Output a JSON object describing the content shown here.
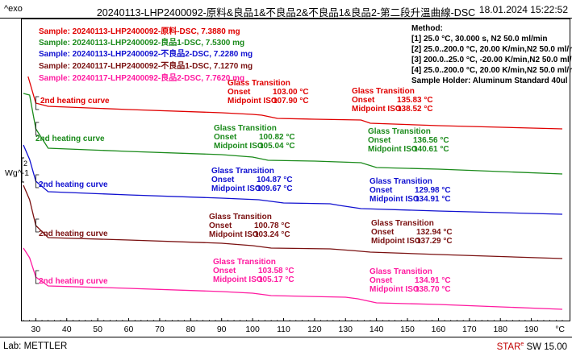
{
  "header": {
    "exo": "^exo",
    "title": "20240113-LHP2400092-原料&良品1&不良品2&不良品1&良品2-第二段升溫曲線-DSC",
    "date": "18.01.2024 15:22:52"
  },
  "ylabel": "Wg^-1",
  "scale_bar_label": "2",
  "footer": {
    "lab": "Lab: METTLER",
    "star_main": "STAR",
    "star_sup": "e",
    "star_rest": " SW 15.00"
  },
  "method": {
    "title": "Method:",
    "lines": [
      "[1] 25.0 °C, 30.000 s,  N2 50.0 ml/min",
      "[2] 25.0..200.0 °C, 20.00 K/min,N2 50.0 ml/min",
      "[3] 200.0..25.0 °C, -20.00 K/min,N2 50.0 ml/min",
      "[4] 25.0..200.0 °C, 20.00 K/min,N2 50.0 ml/min",
      "Sample Holder: Aluminum Standard 40ul"
    ]
  },
  "samples": [
    {
      "prefix": "Sample: 20240113-LHP2400092-",
      "name": "原料",
      "suffix": "-DSC, 7.3880 mg",
      "color": "#e00000"
    },
    {
      "prefix": "Sample: 20240113-LHP2400092-",
      "name": "良品1",
      "suffix": "-DSC, 7.5300 mg",
      "color": "#1a8a1a"
    },
    {
      "prefix": "Sample: 20240113-LHP2400092-",
      "name": "不良品2",
      "suffix": "-DSC, 7.2280 mg",
      "color": "#1010d0"
    },
    {
      "prefix": "Sample: 20240117-LHP2400092-",
      "name": "不良品1",
      "suffix": "-DSC, 7.1270 mg",
      "color": "#7a1010"
    },
    {
      "prefix": "Sample: 20240117-LHP2400092-",
      "name": "良品2",
      "suffix": "-DSC, 7.7620 mg",
      "color": "#ff1aa0"
    }
  ],
  "chart_data": {
    "type": "line",
    "xlabel": "°C",
    "xlim": [
      26,
      200
    ],
    "xticks": [
      30,
      40,
      50,
      60,
      70,
      80,
      90,
      100,
      110,
      120,
      130,
      140,
      150,
      160,
      170,
      180,
      190
    ],
    "curve_label": "2nd heating curve",
    "series": [
      {
        "color": "#e00000",
        "points": [
          [
            27.5,
            95
          ],
          [
            30,
            128
          ],
          [
            34,
            132
          ],
          [
            60,
            136
          ],
          [
            90,
            140
          ],
          [
            100,
            142
          ],
          [
            103,
            143
          ],
          [
            108,
            147
          ],
          [
            120,
            148
          ],
          [
            135,
            149
          ],
          [
            138,
            153
          ],
          [
            160,
            156
          ],
          [
            200,
            160
          ]
        ],
        "transitions": [
          {
            "title": "Glass Transition",
            "onset_label": "Onset",
            "onset": "103.00 °C",
            "mid_label": "Midpoint ISO",
            "mid": "107.90 °C"
          },
          {
            "title": "Glass Transition",
            "onset_label": "Onset",
            "onset": "135.83 °C",
            "mid_label": "Midpoint ISO",
            "mid": "138.52 °C"
          }
        ]
      },
      {
        "color": "#1a8a1a",
        "points": [
          [
            26,
            116
          ],
          [
            28,
            118
          ],
          [
            30,
            160
          ],
          [
            34,
            184
          ],
          [
            60,
            188
          ],
          [
            90,
            192
          ],
          [
            100,
            195
          ],
          [
            105,
            199
          ],
          [
            120,
            200
          ],
          [
            135,
            202
          ],
          [
            140,
            208
          ],
          [
            160,
            210
          ],
          [
            200,
            216
          ]
        ],
        "transitions": [
          {
            "title": "Glass Transition",
            "onset_label": "Onset",
            "onset": "100.82 °C",
            "mid_label": "Midpoint ISO",
            "mid": "105.04 °C"
          },
          {
            "title": "Glass Transition",
            "onset_label": "Onset",
            "onset": "136.56 °C",
            "mid_label": "Midpoint ISO",
            "mid": "140.61 °C"
          }
        ]
      },
      {
        "color": "#1010d0",
        "points": [
          [
            26,
            180
          ],
          [
            28,
            198
          ],
          [
            30,
            225
          ],
          [
            34,
            238
          ],
          [
            60,
            242
          ],
          [
            90,
            246
          ],
          [
            102,
            248
          ],
          [
            110,
            252
          ],
          [
            125,
            253
          ],
          [
            128,
            255
          ],
          [
            135,
            259
          ],
          [
            160,
            262
          ],
          [
            200,
            266
          ]
        ],
        "transitions": [
          {
            "title": "Glass Transition",
            "onset_label": "Onset",
            "onset": "104.87 °C",
            "mid_label": "Midpoint ISO",
            "mid": "109.67 °C"
          },
          {
            "title": "Glass Transition",
            "onset_label": "Onset",
            "onset": "129.98 °C",
            "mid_label": "Midpoint ISO",
            "mid": "134.91 °C"
          }
        ]
      },
      {
        "color": "#7a1010",
        "points": [
          [
            26,
            230
          ],
          [
            28,
            248
          ],
          [
            30,
            280
          ],
          [
            34,
            295
          ],
          [
            60,
            298
          ],
          [
            90,
            302
          ],
          [
            100,
            305
          ],
          [
            106,
            308
          ],
          [
            125,
            309
          ],
          [
            132,
            311
          ],
          [
            138,
            313
          ],
          [
            160,
            316
          ],
          [
            200,
            321
          ]
        ],
        "transitions": [
          {
            "title": "Glass Transition",
            "onset_label": "Onset",
            "onset": "100.78 °C",
            "mid_label": "Midpoint ISO",
            "mid": "103.24 °C"
          },
          {
            "title": "Glass Transition",
            "onset_label": "Onset",
            "onset": "132.94 °C",
            "mid_label": "Midpoint ISO",
            "mid": "137.29 °C"
          }
        ]
      },
      {
        "color": "#ff1aa0",
        "points": [
          [
            26,
            308
          ],
          [
            28,
            320
          ],
          [
            30,
            344
          ],
          [
            34,
            355
          ],
          [
            60,
            358
          ],
          [
            90,
            362
          ],
          [
            100,
            364
          ],
          [
            106,
            367
          ],
          [
            130,
            369
          ],
          [
            134,
            371
          ],
          [
            140,
            376
          ],
          [
            160,
            378
          ],
          [
            200,
            384
          ]
        ],
        "transitions": [
          {
            "title": "Glass Transition",
            "onset_label": "Onset",
            "onset": "103.58 °C",
            "mid_label": "Midpoint ISO",
            "mid": "105.17 °C"
          },
          {
            "title": "Glass Transition",
            "onset_label": "Onset",
            "onset": "134.91 °C",
            "mid_label": "Midpoint ISO",
            "mid": "138.70 °C"
          }
        ]
      }
    ]
  }
}
